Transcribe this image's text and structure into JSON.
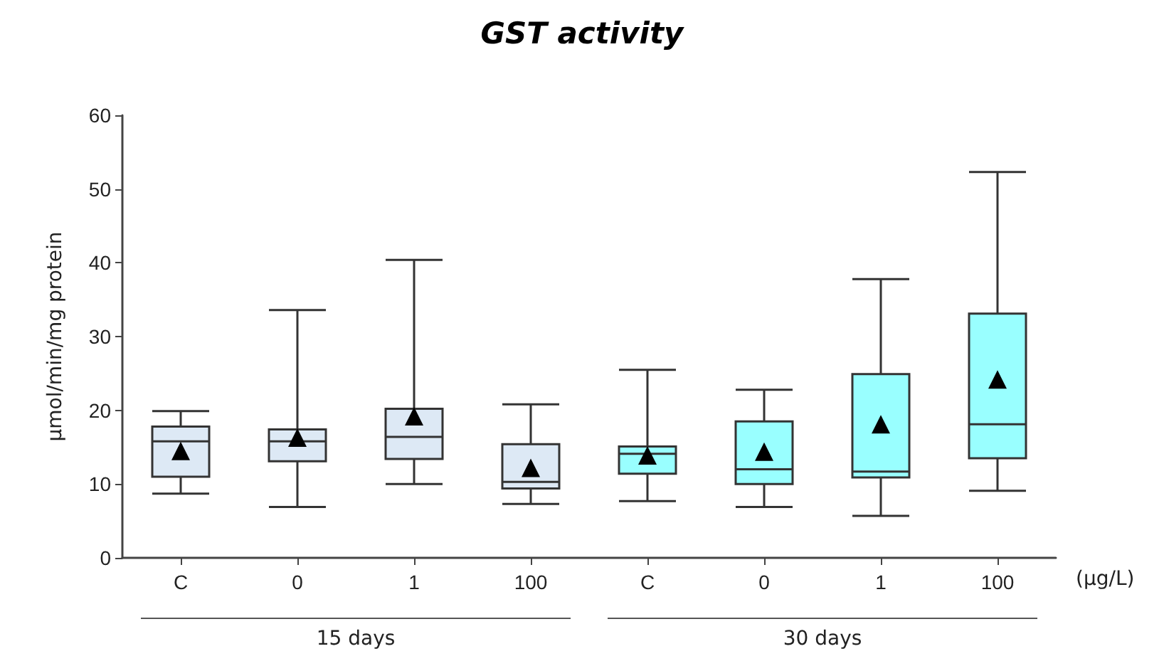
{
  "chart_data": {
    "type": "box",
    "title": "GST activity",
    "ylabel": "µmol/min/mg protein",
    "xlabel": "(µg/L)",
    "categories": [
      "C",
      "0",
      "1",
      "100",
      "C",
      "0",
      "1",
      "100"
    ],
    "boxes": [
      {
        "low": 8.7,
        "q1": 11.0,
        "median": 15.8,
        "q3": 17.8,
        "high": 19.9,
        "mean": 14.5
      },
      {
        "low": 6.9,
        "q1": 13.1,
        "median": 15.8,
        "q3": 17.4,
        "high": 33.6,
        "mean": 16.3
      },
      {
        "low": 10.0,
        "q1": 13.4,
        "median": 16.4,
        "q3": 20.2,
        "high": 40.4,
        "mean": 19.2
      },
      {
        "low": 7.3,
        "q1": 9.4,
        "median": 10.3,
        "q3": 15.4,
        "high": 20.8,
        "mean": 12.2
      },
      {
        "low": 7.7,
        "q1": 11.4,
        "median": 14.1,
        "q3": 15.1,
        "high": 25.5,
        "mean": 13.9
      },
      {
        "low": 6.9,
        "q1": 10.0,
        "median": 12.0,
        "q3": 18.5,
        "high": 22.8,
        "mean": 14.4
      },
      {
        "low": 5.7,
        "q1": 10.9,
        "median": 11.7,
        "q3": 24.9,
        "high": 37.8,
        "mean": 18.1
      },
      {
        "low": 9.1,
        "q1": 13.5,
        "median": 18.1,
        "q3": 33.1,
        "high": 52.3,
        "mean": 24.2
      }
    ],
    "colors": [
      "#dde9f5",
      "#dde9f5",
      "#dde9f5",
      "#dde9f5",
      "#99ffff",
      "#99ffff",
      "#99ffff",
      "#99ffff"
    ],
    "annotations": [
      "15 days",
      "30 days"
    ],
    "ylim": [
      0,
      60
    ],
    "yticks": [
      0,
      10,
      20,
      30,
      40,
      50,
      60
    ],
    "marker": "triangle"
  }
}
